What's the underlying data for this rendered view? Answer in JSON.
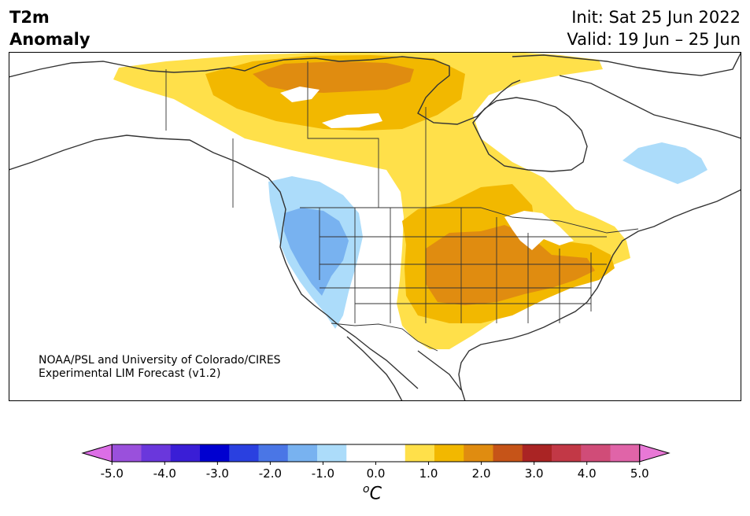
{
  "header": {
    "title_line1": "T2m",
    "title_line2": "Anomaly",
    "init_text": "Init: Sat 25 Jun 2022",
    "valid_text": "Valid: 19 Jun – 25 Jun"
  },
  "credit": {
    "line1": "NOAA/PSL and University of Colorado/CIRES",
    "line2": "Experimental LIM Forecast (v1.2)"
  },
  "colorbar": {
    "tick_labels": [
      "-5.0",
      "-4.0",
      "-3.0",
      "-2.0",
      "-1.0",
      "0.0",
      "1.0",
      "2.0",
      "3.0",
      "4.0",
      "5.0"
    ],
    "unit_label": "oC",
    "colors": [
      "#dc6ee6",
      "#9a50dc",
      "#6a37dc",
      "#3a1ed6",
      "#0000d0",
      "#2a40e0",
      "#4a76e6",
      "#78b2f0",
      "#acdcfa",
      "#ffffff",
      "#ffffff",
      "#ffe04a",
      "#f2b800",
      "#e08c10",
      "#c65418",
      "#aa2424",
      "#c23846",
      "#d04c78",
      "#e064a8",
      "#e878d6"
    ]
  },
  "anomaly_colors": {
    "plus_0_5": "#ffe04a",
    "plus_1_0": "#f2b800",
    "plus_1_5": "#e08c10",
    "minus_0_5": "#acdcfa",
    "minus_1_0": "#78b2f0"
  }
}
